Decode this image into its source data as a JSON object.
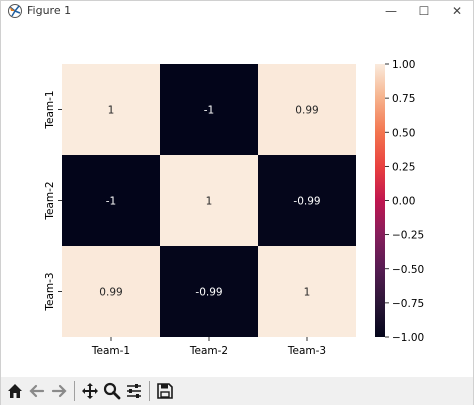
{
  "window": {
    "title": "Figure 1"
  },
  "controls": {
    "minimize": "—",
    "maximize": "☐",
    "close": "✕"
  },
  "toolbar": {
    "items": [
      "home-icon",
      "back-icon",
      "forward-icon",
      "pan-icon",
      "zoom-icon",
      "configure-icon",
      "save-icon"
    ]
  },
  "colors": {
    "high": "#faebdd",
    "low": "#03051a",
    "toolbar_bg": "#f0f0f0"
  },
  "chart_data": {
    "type": "heatmap",
    "rows": [
      "Team-1",
      "Team-2",
      "Team-3"
    ],
    "cols": [
      "Team-1",
      "Team-2",
      "Team-3"
    ],
    "values": [
      [
        1,
        -1,
        0.99
      ],
      [
        -1,
        1,
        -0.99
      ],
      [
        0.99,
        -0.99,
        1
      ]
    ],
    "annotations": [
      [
        "1",
        "-1",
        "0.99"
      ],
      [
        "-1",
        "1",
        "-0.99"
      ],
      [
        "0.99",
        "-0.99",
        "1"
      ]
    ],
    "colorbar": {
      "range": [
        -1.0,
        1.0
      ],
      "ticks": [
        1.0,
        0.75,
        0.5,
        0.25,
        0.0,
        -0.25,
        -0.5,
        -0.75,
        -1.0
      ],
      "tick_labels": [
        "1.00",
        "0.75",
        "0.50",
        "0.25",
        "0.00",
        "−0.25",
        "−0.50",
        "−0.75",
        "−1.00"
      ],
      "colormap": "rocket"
    }
  }
}
